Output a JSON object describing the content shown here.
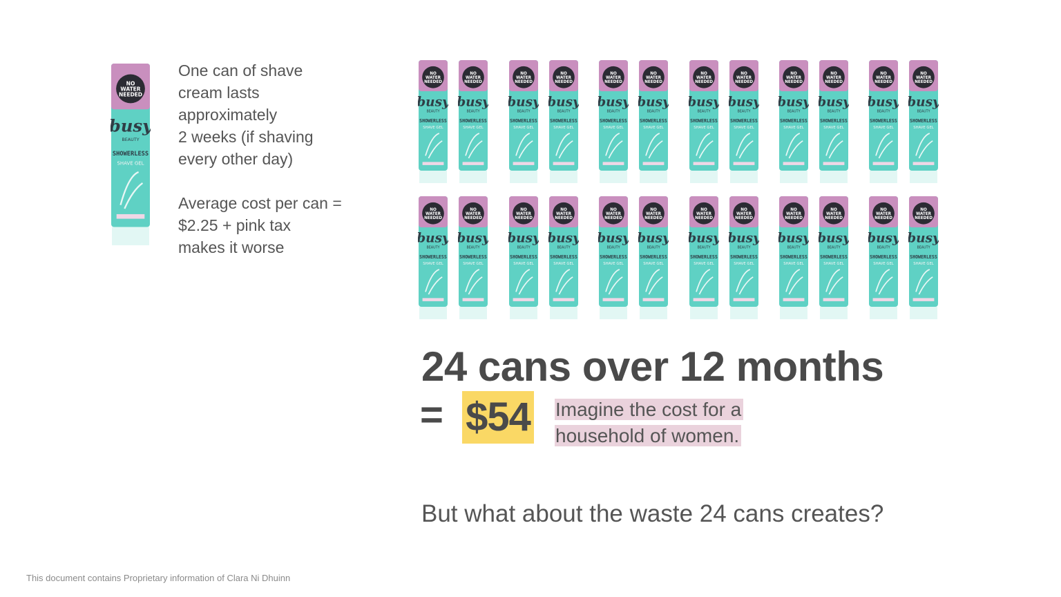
{
  "slide": {
    "intro_paragraph_1": "One can of shave\ncream lasts\napproximately\n2 weeks (if shaving\nevery other day)",
    "intro_paragraph_2": "Average cost per can =\n$2.25 + pink tax\nmakes it worse",
    "headline": "24 cans over 12 months",
    "equals_sign": "=",
    "total_cost": "$54",
    "callout_line_1": "Imagine the cost for a",
    "callout_line_2": "household of women.",
    "question": "But what about the waste 24 cans creates?",
    "footer": "This document contains Proprietary information of Clara Ni Dhuinn"
  },
  "product": {
    "cap_badge_line_1": "NO",
    "cap_badge_line_2": "WATER",
    "cap_badge_line_3": "NEEDED",
    "brand": "busy",
    "brand_sub": "BEAUTY",
    "name_line_1": "SHOWERLESS",
    "name_line_2": "SHAVE GEL",
    "can_count": 24,
    "grid_rows": 2,
    "grid_columns": 12
  },
  "colors": {
    "can_body": "#5fd1c4",
    "can_cap": "#c98fbe",
    "badge": "#2b2b33",
    "price_highlight": "#fad865",
    "callout_highlight": "#ead2dc",
    "text": "#4f4f4f"
  }
}
